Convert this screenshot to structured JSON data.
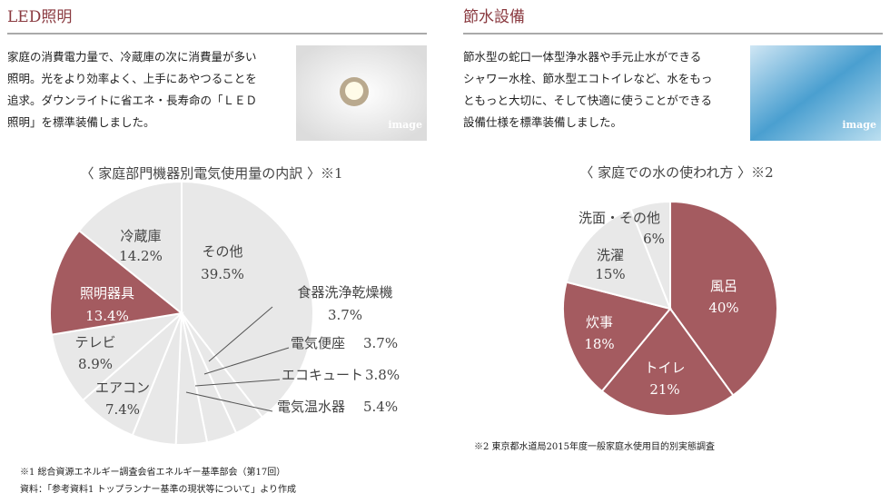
{
  "sections": [
    {
      "title": "LED照明",
      "lines": [
        "家庭の消費電力量で、冷蔵庫の次に消費量が多い",
        "照明。光をより効率よく、上手にあやつることを",
        "追求。ダウンライトに省エネ・長寿命の「ＬＥＤ",
        "照明」を標準装備しました。"
      ],
      "image_label": "image"
    },
    {
      "title": "節水設備",
      "lines": [
        "節水型の蛇口一体型浄水器や手元止水ができる",
        "シャワー水栓、節水型エコトイレなど、水をもっ",
        "ともっと大切に、そして快適に使うことができる",
        "設備仕様を標準装備しました。"
      ],
      "image_label": "image"
    }
  ],
  "chart_data": [
    {
      "type": "pie",
      "title": "〈 家庭部門機器別電気使用量の内訳 〉※1",
      "categories": [
        "その他",
        "食器洗浄乾燥機",
        "電気便座",
        "エコキュート",
        "電気温水器",
        "エアコン",
        "テレビ",
        "照明器具",
        "冷蔵庫"
      ],
      "values": [
        39.5,
        3.7,
        3.7,
        3.8,
        5.4,
        7.4,
        8.9,
        13.4,
        14.2
      ],
      "value_labels": [
        "39.5%",
        "3.7%",
        "3.7%",
        "3.8%",
        "5.4%",
        "7.4%",
        "8.9%",
        "13.4%",
        "14.2%"
      ],
      "colors": [
        "#e8e8e8",
        "#e8e8e8",
        "#e8e8e8",
        "#e8e8e8",
        "#e8e8e8",
        "#e8e8e8",
        "#e8e8e8",
        "#a45b60",
        "#e8e8e8"
      ],
      "notes": [
        "※1 総合資源エネルギー調査会省エネルギー基準部会（第17回）",
        "資料：「参考資料1 トップランナー基準の現状等について」より作成"
      ]
    },
    {
      "type": "pie",
      "title": "〈 家庭での水の使われ方 〉※2",
      "categories": [
        "風呂",
        "トイレ",
        "炊事",
        "洗濯",
        "洗面・その他"
      ],
      "values": [
        40,
        21,
        18,
        15,
        6
      ],
      "value_labels": [
        "40%",
        "21%",
        "18%",
        "15%",
        "6%"
      ],
      "colors": [
        "#a45b60",
        "#a45b60",
        "#a45b60",
        "#e8e8e8",
        "#e8e8e8"
      ],
      "notes": [
        "※2 東京都水道局2015年度一般家庭水使用目的別実態調査"
      ]
    }
  ]
}
